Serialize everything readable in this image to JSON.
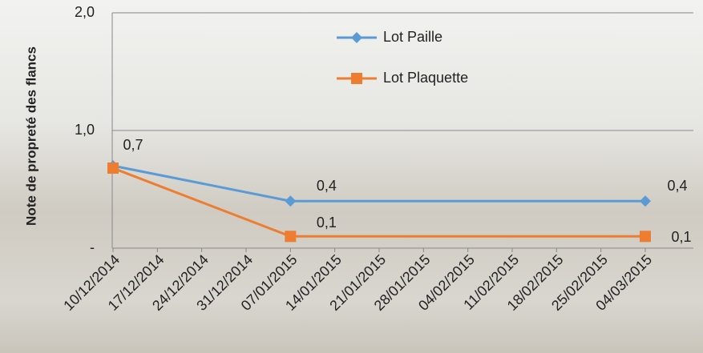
{
  "chart_data": {
    "type": "line",
    "y_label": "Note de propreté des flancs",
    "xticks": [
      "10/12/2014",
      "17/12/2014",
      "24/12/2014",
      "31/12/2014",
      "07/01/2015",
      "14/01/2015",
      "21/01/2015",
      "28/01/2015",
      "04/02/2015",
      "11/02/2015",
      "18/02/2015",
      "25/02/2015",
      "04/03/2015"
    ],
    "xlim": [
      "10/12/2014",
      "04/03/2015"
    ],
    "x": [
      "10/12/2014",
      "07/01/2015",
      "04/03/2015"
    ],
    "ylim": [
      0,
      2
    ],
    "yticks": [
      {
        "value": 0,
        "label": "-"
      },
      {
        "value": 1,
        "label": "1,0"
      },
      {
        "value": 2,
        "label": "2,0"
      }
    ],
    "grid": true,
    "legend": "top",
    "series": [
      {
        "name": "Lot Paille",
        "color": "#5b9bd5",
        "marker": "diamond",
        "values": [
          0.7,
          0.4,
          0.4
        ],
        "value_labels": [
          "0,7",
          "0,4",
          "0,4"
        ]
      },
      {
        "name": "Lot Plaquette",
        "color": "#ed7d31",
        "marker": "square",
        "values": [
          0.68,
          0.1,
          0.1
        ],
        "value_labels": [
          null,
          "0,1",
          "0,1"
        ]
      }
    ]
  }
}
